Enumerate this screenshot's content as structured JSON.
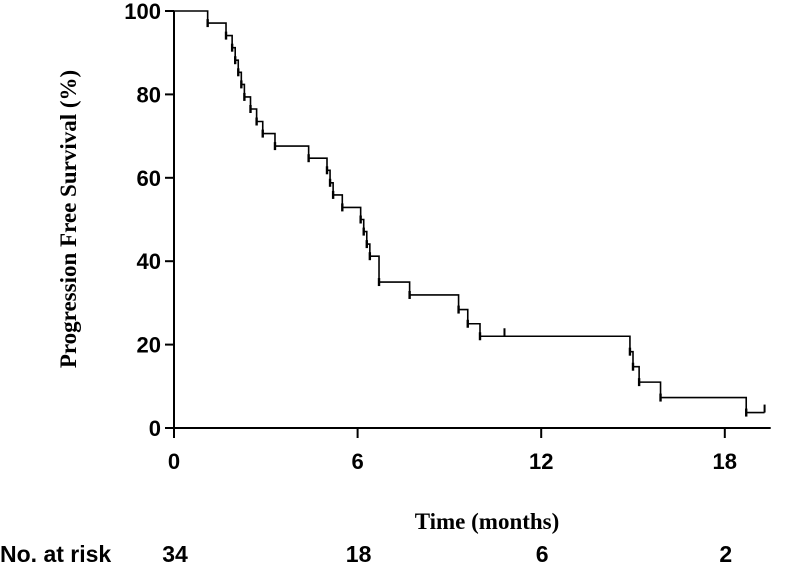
{
  "chart_data": {
    "type": "line",
    "title": "",
    "xlabel": "Time (months)",
    "ylabel": "Progression Free Survival (%)",
    "xlim": [
      0,
      19.5
    ],
    "ylim": [
      0,
      100
    ],
    "x_ticks": [
      0,
      6,
      12,
      18
    ],
    "y_ticks": [
      0,
      20,
      40,
      60,
      80,
      100
    ],
    "grid": false,
    "legend": "none",
    "series": [
      {
        "step": "post",
        "x": [
          0,
          1.1,
          1.7,
          1.9,
          2.0,
          2.1,
          2.2,
          2.3,
          2.5,
          2.7,
          2.9,
          3.3,
          4.4,
          5.0,
          5.1,
          5.2,
          5.5,
          6.1,
          6.2,
          6.3,
          6.4,
          6.7,
          7.7,
          9.3,
          9.6,
          10.0,
          14.9,
          15.0,
          15.2,
          15.9,
          18.7,
          19.3
        ],
        "y": [
          100,
          97.1,
          94.1,
          91.2,
          88.2,
          85.3,
          82.4,
          79.4,
          76.5,
          73.5,
          70.6,
          67.6,
          64.7,
          61.8,
          58.8,
          55.9,
          52.9,
          50.0,
          47.1,
          44.1,
          41.2,
          35.0,
          31.9,
          28.4,
          25.0,
          22.0,
          18.3,
          14.7,
          11.0,
          7.3,
          3.7,
          3.7
        ]
      }
    ],
    "censor_marks": [
      {
        "x": 10.8,
        "y": 22.0
      },
      {
        "x": 19.3,
        "y": 3.7
      }
    ],
    "risk_table": {
      "label": "No. at risk",
      "times": [
        0,
        6,
        12,
        18
      ],
      "counts": [
        "34",
        "18",
        "6",
        "2"
      ]
    }
  }
}
